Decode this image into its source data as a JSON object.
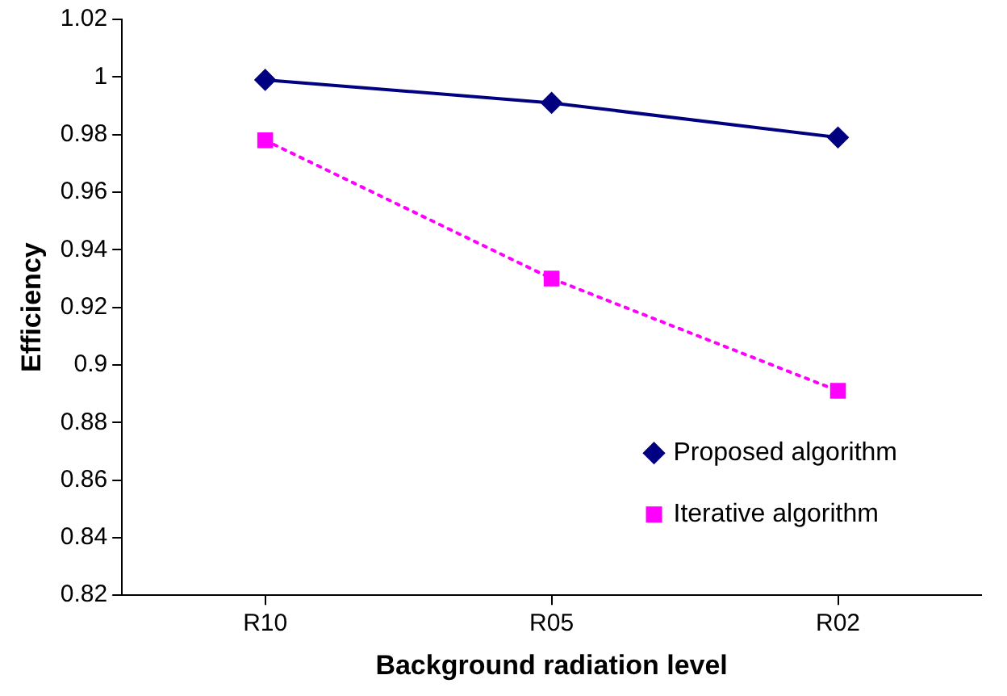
{
  "chart_data": {
    "type": "line",
    "xlabel": "Background radiation level",
    "ylabel": "Efficiency",
    "categories": [
      "R10",
      "R05",
      "R02"
    ],
    "series": [
      {
        "name": "Proposed algorithm",
        "color": "#000080",
        "values": [
          0.999,
          0.991,
          0.979
        ],
        "marker": "diamond",
        "line_style": "solid"
      },
      {
        "name": "Iterative algorithm",
        "color": "#ff00ff",
        "values": [
          0.978,
          0.93,
          0.891
        ],
        "marker": "square",
        "line_style": "dotted"
      }
    ],
    "ylim": [
      0.82,
      1.02
    ],
    "yticks": [
      0.82,
      0.84,
      0.86,
      0.88,
      0.9,
      0.92,
      0.94,
      0.96,
      0.98,
      1,
      1.02
    ],
    "grid": false,
    "legend": "bottom right"
  }
}
